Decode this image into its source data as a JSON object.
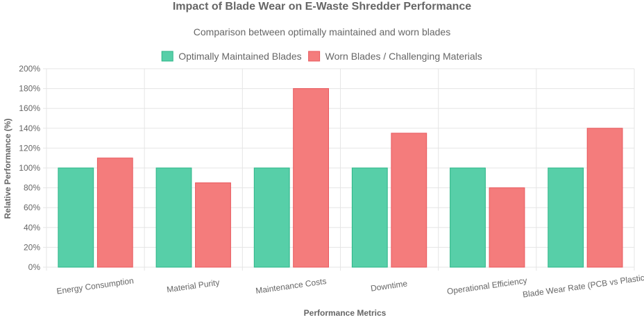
{
  "chart_data": {
    "type": "bar",
    "title": "Impact of Blade Wear on E-Waste Shredder Performance",
    "subtitle": "Comparison between optimally maintained and worn blades",
    "xlabel": "Performance Metrics",
    "ylabel": "Relative Performance (%)",
    "ylim": [
      0,
      200
    ],
    "ytick_step": 20,
    "ytick_suffix": "%",
    "grid": true,
    "legend_position": "top-center",
    "categories": [
      "Energy Consumption",
      "Material Purity",
      "Maintenance Costs",
      "Downtime",
      "Operational Efficiency",
      "Blade Wear Rate (PCB vs Plastic)"
    ],
    "series": [
      {
        "name": "Optimally Maintained Blades",
        "values": [
          100,
          100,
          100,
          100,
          100,
          100
        ],
        "fill": "#57cfa8",
        "stroke": "#2bb587"
      },
      {
        "name": "Worn Blades / Challenging Materials",
        "values": [
          110,
          85,
          180,
          135,
          80,
          140
        ],
        "fill": "#f47c7c",
        "stroke": "#e8585d"
      }
    ]
  }
}
